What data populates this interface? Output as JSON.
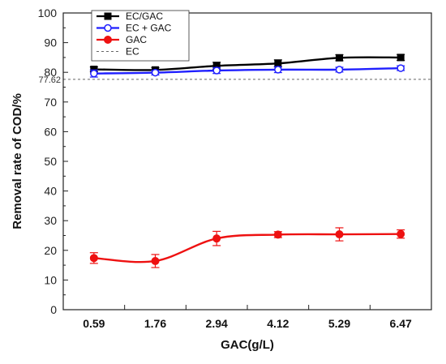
{
  "chart_data": {
    "type": "line",
    "title": "",
    "xlabel": "GAC(g/L)",
    "ylabel": "Removal rate of COD/%",
    "categories": [
      "0.59",
      "1.76",
      "2.94",
      "4.12",
      "5.29",
      "6.47"
    ],
    "ylim": [
      0,
      100
    ],
    "yticks": [
      "0",
      "10",
      "20",
      "30",
      "40",
      "50",
      "60",
      "70",
      "80",
      "90",
      "100"
    ],
    "grid": false,
    "legend_position": "top-left",
    "series": [
      {
        "name": "EC/GAC",
        "color": "#000000",
        "marker": "square",
        "values": [
          81.0,
          80.8,
          82.2,
          83.0,
          84.9,
          85.0
        ],
        "errors": [
          0.8,
          0.8,
          1.2,
          1.2,
          1.0,
          1.0
        ]
      },
      {
        "name": "EC + GAC",
        "color": "#1f1fff",
        "marker": "circle-open",
        "values": [
          79.6,
          79.9,
          80.6,
          80.9,
          80.9,
          81.4
        ],
        "errors": [
          1.2,
          0.8,
          1.0,
          1.0,
          0.8,
          0.8
        ]
      },
      {
        "name": "GAC",
        "color": "#ee1111",
        "marker": "circle",
        "values": [
          17.4,
          16.4,
          24.0,
          25.3,
          25.4,
          25.5
        ],
        "errors": [
          1.8,
          2.2,
          2.4,
          1.0,
          2.2,
          1.4
        ]
      }
    ],
    "reference_line": {
      "name": "EC",
      "value": 77.62,
      "label": "77.62",
      "color": "#666666",
      "style": "dashed"
    }
  }
}
